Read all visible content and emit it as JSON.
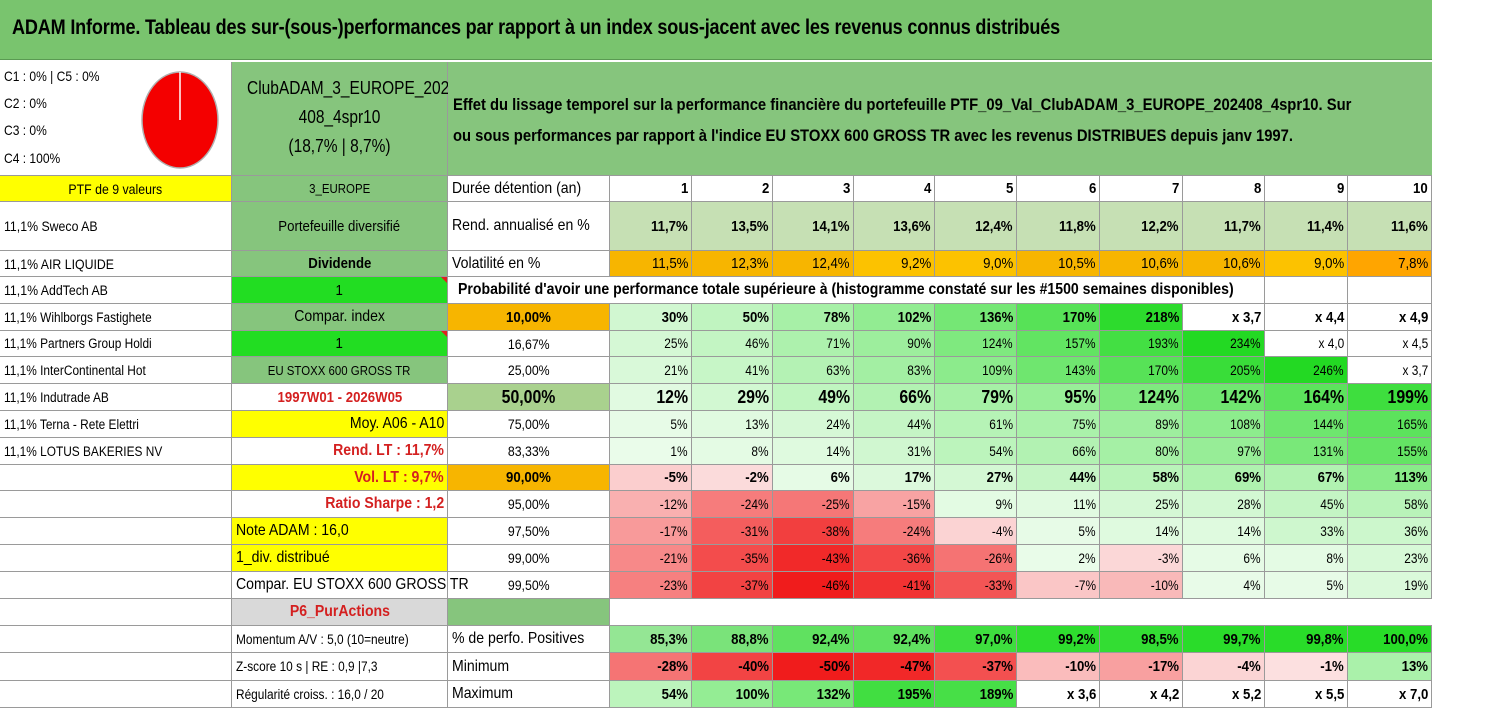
{
  "title": "ADAM Informe. Tableau des sur-(sous-)performances par rapport à un index sous-jacent avec les revenus connus distribués",
  "pie": {
    "labels": [
      "C1 : 0% | C5 : 0%",
      "C2 : 0%",
      "C3 : 0%",
      "C4 : 100%"
    ],
    "slices": [
      {
        "name": "C4",
        "value": 100,
        "color": "#f40000"
      }
    ]
  },
  "club": {
    "line1": "ClubADAM_3_EUROPE_202",
    "line2": "408_4spr10",
    "line3": "(18,7% | 8,7%)"
  },
  "description": {
    "line1": "Effet du lissage temporel sur la performance financière du portefeuille PTF_09_Val_ClubADAM_3_EUROPE_202408_4spr10. Sur",
    "line2": "ou sous performances par rapport à l'indice EU STOXX 600 GROSS TR avec les revenus DISTRIBUES depuis janv 1997."
  },
  "portfolio": {
    "header": "PTF de 9 valeurs",
    "holdings": [
      "11,1% Sweco AB",
      "11,1% AIR LIQUIDE",
      "11,1% AddTech AB",
      "11,1% Wihlborgs Fastighete",
      "11,1% Partners Group Holdi",
      "11,1% InterContinental Hot",
      "11,1% Indutrade AB",
      "11,1% Terna - Rete Elettri",
      "11,1% LOTUS BAKERIES NV"
    ]
  },
  "info": {
    "zone": "3_EUROPE",
    "type": "Portefeuille diversifié",
    "dividend_label": "Dividende",
    "dividend_value": "1",
    "compar_label": "Compar. index",
    "compar_value": "1",
    "index_name": "EU STOXX 600 GROSS TR",
    "period": "1997W01 - 2026W05",
    "moy": "Moy. A06 - A10",
    "rend_lt": "Rend. LT : 11,7%",
    "vol_lt": "Vol. LT : 9,7%",
    "sharpe": "Ratio Sharpe : 1,2",
    "note": "Note ADAM : 16,0",
    "div": "1_div. distribué",
    "compar_full": "Compar. EU STOXX 600 GROSS TR",
    "p6": "P6_PurActions",
    "momentum": "Momentum A/V : 5,0 (10=neutre)",
    "zscore": "Z-score 10 s | RE : 0,9 |7,3",
    "regularite": "Régularité croiss. : 16,0 / 20"
  },
  "durations": {
    "label": "Durée détention (an)",
    "years": [
      "1",
      "2",
      "3",
      "4",
      "5",
      "6",
      "7",
      "8",
      "9",
      "10"
    ]
  },
  "rend": {
    "label": "Rend. annualisé en %",
    "values": [
      "11,7%",
      "13,5%",
      "14,1%",
      "13,6%",
      "12,4%",
      "11,8%",
      "12,2%",
      "11,7%",
      "11,4%",
      "11,6%"
    ]
  },
  "vol": {
    "label": "Volatilité en %",
    "values": [
      "11,5%",
      "12,3%",
      "12,4%",
      "9,2%",
      "9,0%",
      "10,5%",
      "10,6%",
      "10,6%",
      "9,0%",
      "7,8%"
    ]
  },
  "prob_title": "Probabilité d'avoir une performance totale supérieure à (histogramme constaté sur les #1500 semaines disponibles)",
  "prob_rows": [
    {
      "p": "10,00%",
      "values": [
        "30%",
        "50%",
        "78%",
        "102%",
        "136%",
        "170%",
        "218%",
        "x 3,7",
        "x 4,4",
        "x 4,9"
      ]
    },
    {
      "p": "16,67%",
      "values": [
        "25%",
        "46%",
        "71%",
        "90%",
        "124%",
        "157%",
        "193%",
        "234%",
        "x 4,0",
        "x 4,5"
      ]
    },
    {
      "p": "25,00%",
      "values": [
        "21%",
        "41%",
        "63%",
        "83%",
        "109%",
        "143%",
        "170%",
        "205%",
        "246%",
        "x 3,7"
      ]
    },
    {
      "p": "50,00%",
      "values": [
        "12%",
        "29%",
        "49%",
        "66%",
        "79%",
        "95%",
        "124%",
        "142%",
        "164%",
        "199%"
      ]
    },
    {
      "p": "75,00%",
      "values": [
        "5%",
        "13%",
        "24%",
        "44%",
        "61%",
        "75%",
        "89%",
        "108%",
        "144%",
        "165%"
      ]
    },
    {
      "p": "83,33%",
      "values": [
        "1%",
        "8%",
        "14%",
        "31%",
        "54%",
        "66%",
        "80%",
        "97%",
        "131%",
        "155%"
      ]
    },
    {
      "p": "90,00%",
      "values": [
        "-5%",
        "-2%",
        "6%",
        "17%",
        "27%",
        "44%",
        "58%",
        "69%",
        "67%",
        "113%"
      ]
    },
    {
      "p": "95,00%",
      "values": [
        "-12%",
        "-24%",
        "-25%",
        "-15%",
        "9%",
        "11%",
        "25%",
        "28%",
        "45%",
        "58%"
      ]
    },
    {
      "p": "97,50%",
      "values": [
        "-17%",
        "-31%",
        "-38%",
        "-24%",
        "-4%",
        "5%",
        "14%",
        "14%",
        "33%",
        "36%"
      ]
    },
    {
      "p": "99,00%",
      "values": [
        "-21%",
        "-35%",
        "-43%",
        "-36%",
        "-26%",
        "2%",
        "-3%",
        "6%",
        "8%",
        "23%"
      ]
    },
    {
      "p": "99,50%",
      "values": [
        "-23%",
        "-37%",
        "-46%",
        "-41%",
        "-33%",
        "-7%",
        "-10%",
        "4%",
        "5%",
        "19%"
      ]
    }
  ],
  "positives": {
    "label": "% de perfo. Positives",
    "values": [
      "85,3%",
      "88,8%",
      "92,4%",
      "92,4%",
      "97,0%",
      "99,2%",
      "98,5%",
      "99,7%",
      "99,8%",
      "100,0%"
    ]
  },
  "minimum": {
    "label": "Minimum",
    "values": [
      "-28%",
      "-40%",
      "-50%",
      "-47%",
      "-37%",
      "-10%",
      "-17%",
      "-4%",
      "-1%",
      "13%"
    ]
  },
  "maximum": {
    "label": "Maximum",
    "values": [
      "54%",
      "100%",
      "132%",
      "195%",
      "189%",
      "x 3,6",
      "x 4,2",
      "x 5,2",
      "x 5,5",
      "x 7,0"
    ]
  },
  "colors": {
    "title_green": "#79c46e",
    "cell_green": "#86c57d",
    "yellow": "#ffff00",
    "orange": "#f7b500",
    "bright_green": "#22dd22",
    "red_text": "#d42020",
    "gray": "#d9d9d9"
  }
}
